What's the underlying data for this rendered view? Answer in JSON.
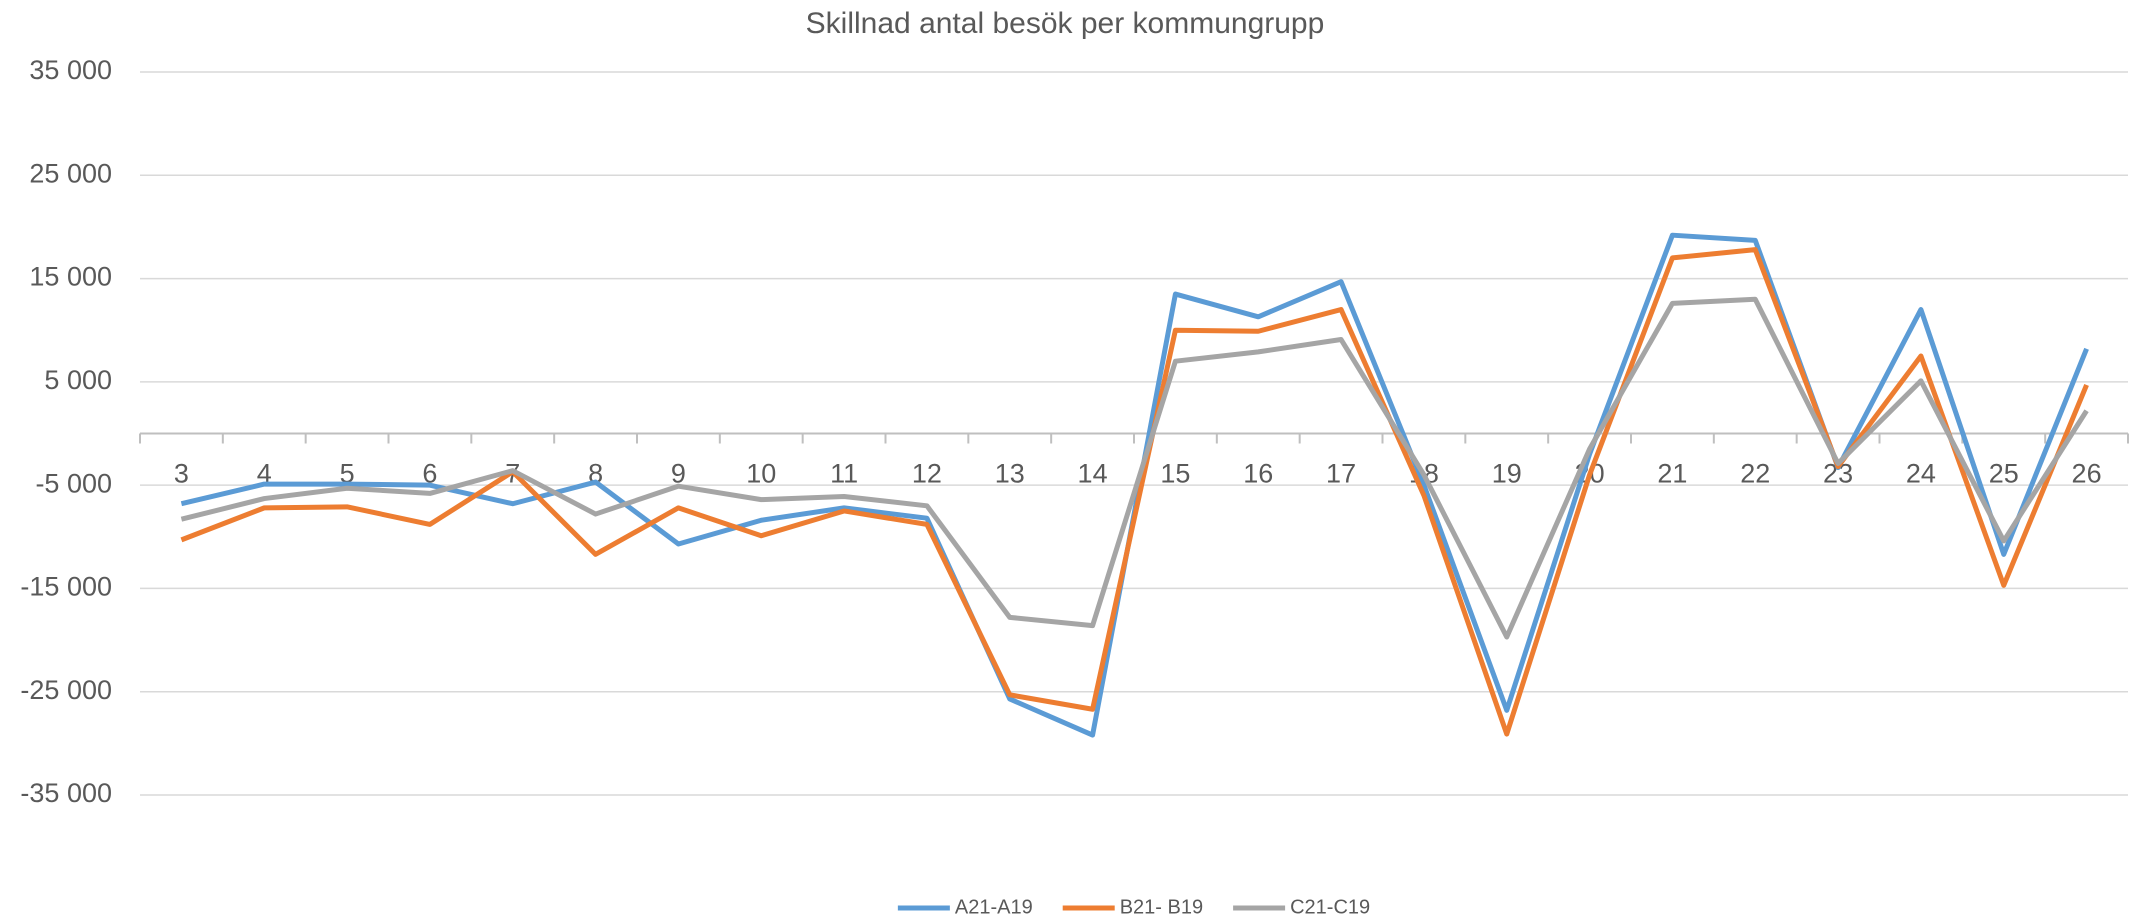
{
  "chart_data": {
    "type": "line",
    "title": "Skillnad antal besök per kommungrupp",
    "categories": [
      "3",
      "4",
      "5",
      "6",
      "7",
      "8",
      "9",
      "10",
      "11",
      "12",
      "13",
      "14",
      "15",
      "16",
      "17",
      "18",
      "19",
      "20",
      "21",
      "22",
      "23",
      "24",
      "25",
      "26"
    ],
    "series": [
      {
        "name": "A21-A19",
        "color": "#5b9bd5",
        "values": [
          -6800,
          -4900,
          -4900,
          -5000,
          -6800,
          -4700,
          -10700,
          -8400,
          -7200,
          -8200,
          -25700,
          -29200,
          13500,
          11300,
          14700,
          -5000,
          -26800,
          -2000,
          19200,
          18700,
          -3300,
          12000,
          -11700,
          8200
        ]
      },
      {
        "name": "B21- B19",
        "color": "#ed7d31",
        "values": [
          -10300,
          -7200,
          -7100,
          -8800,
          -3700,
          -11700,
          -7200,
          -9900,
          -7500,
          -8800,
          -25300,
          -26700,
          10000,
          9900,
          12000,
          -6000,
          -29100,
          -4000,
          17000,
          17800,
          -3200,
          7500,
          -14700,
          4700
        ]
      },
      {
        "name": "C21-C19",
        "color": "#a5a5a5",
        "values": [
          -8300,
          -6300,
          -5300,
          -5800,
          -3600,
          -7800,
          -5100,
          -6400,
          -6100,
          -7000,
          -17800,
          -18600,
          7000,
          7900,
          9100,
          -4000,
          -19700,
          -1500,
          12600,
          13000,
          -2900,
          5100,
          -10400,
          2200
        ]
      }
    ],
    "ylim": [
      -35000,
      35000
    ],
    "yticks": [
      {
        "value": -35000,
        "label": "-35 000"
      },
      {
        "value": -25000,
        "label": "-25 000"
      },
      {
        "value": -15000,
        "label": "-15 000"
      },
      {
        "value": -5000,
        "label": "-5 000"
      },
      {
        "value": 5000,
        "label": "5 000"
      },
      {
        "value": 15000,
        "label": "15 000"
      },
      {
        "value": 25000,
        "label": "25 000"
      },
      {
        "value": 35000,
        "label": "35 000"
      }
    ],
    "grid": true,
    "legend": "bottom"
  }
}
